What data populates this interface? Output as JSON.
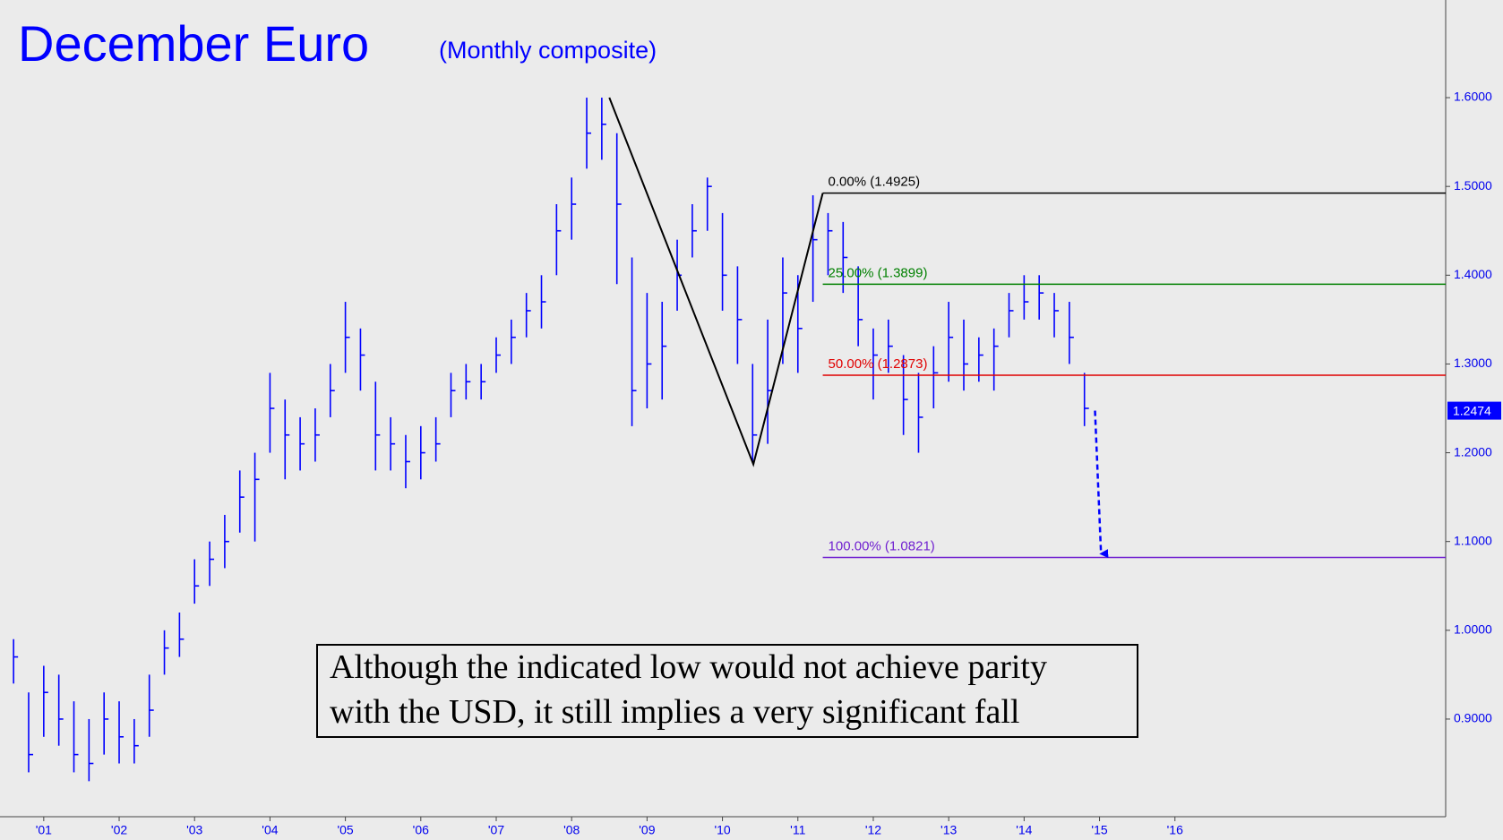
{
  "chart_data": {
    "type": "ohlc",
    "title": "December Euro",
    "subtitle": "(Monthly composite)",
    "color": "#0000ff",
    "x": [
      2000.6,
      2000.8,
      2001.0,
      2001.2,
      2001.4,
      2001.6,
      2001.8,
      2002.0,
      2002.2,
      2002.4,
      2002.6,
      2002.8,
      2003.0,
      2003.2,
      2003.4,
      2003.6,
      2003.8,
      2004.0,
      2004.2,
      2004.4,
      2004.6,
      2004.8,
      2005.0,
      2005.2,
      2005.4,
      2005.6,
      2005.8,
      2006.0,
      2006.2,
      2006.4,
      2006.6,
      2006.8,
      2007.0,
      2007.2,
      2007.4,
      2007.6,
      2007.8,
      2008.0,
      2008.2,
      2008.4,
      2008.6,
      2008.8,
      2009.0,
      2009.2,
      2009.4,
      2009.6,
      2009.8,
      2010.0,
      2010.2,
      2010.4,
      2010.6,
      2010.8,
      2011.0,
      2011.2,
      2011.4,
      2011.6,
      2011.8,
      2012.0,
      2012.2,
      2012.4,
      2012.6,
      2012.8,
      2013.0,
      2013.2,
      2013.4,
      2013.6,
      2013.8,
      2014.0,
      2014.2,
      2014.4,
      2014.6,
      2014.8
    ],
    "high": [
      0.99,
      0.93,
      0.96,
      0.95,
      0.92,
      0.9,
      0.93,
      0.92,
      0.9,
      0.95,
      1.0,
      1.02,
      1.08,
      1.1,
      1.13,
      1.18,
      1.2,
      1.29,
      1.26,
      1.24,
      1.25,
      1.3,
      1.37,
      1.34,
      1.28,
      1.24,
      1.22,
      1.23,
      1.24,
      1.29,
      1.3,
      1.3,
      1.33,
      1.35,
      1.38,
      1.4,
      1.48,
      1.51,
      1.6,
      1.6,
      1.56,
      1.42,
      1.38,
      1.37,
      1.44,
      1.48,
      1.51,
      1.47,
      1.41,
      1.3,
      1.35,
      1.42,
      1.4,
      1.49,
      1.47,
      1.46,
      1.41,
      1.34,
      1.35,
      1.31,
      1.29,
      1.32,
      1.37,
      1.35,
      1.33,
      1.34,
      1.38,
      1.4,
      1.4,
      1.38,
      1.37,
      1.29
    ],
    "low": [
      0.94,
      0.84,
      0.88,
      0.87,
      0.84,
      0.83,
      0.86,
      0.85,
      0.85,
      0.88,
      0.95,
      0.97,
      1.03,
      1.05,
      1.07,
      1.11,
      1.1,
      1.2,
      1.17,
      1.18,
      1.19,
      1.24,
      1.29,
      1.27,
      1.18,
      1.18,
      1.16,
      1.17,
      1.19,
      1.24,
      1.26,
      1.26,
      1.29,
      1.3,
      1.33,
      1.34,
      1.4,
      1.44,
      1.52,
      1.53,
      1.39,
      1.23,
      1.25,
      1.26,
      1.36,
      1.42,
      1.45,
      1.36,
      1.3,
      1.19,
      1.21,
      1.3,
      1.29,
      1.37,
      1.4,
      1.38,
      1.32,
      1.26,
      1.29,
      1.22,
      1.2,
      1.25,
      1.28,
      1.27,
      1.28,
      1.27,
      1.33,
      1.35,
      1.35,
      1.33,
      1.3,
      1.23
    ],
    "close": [
      0.97,
      0.86,
      0.93,
      0.9,
      0.86,
      0.85,
      0.9,
      0.88,
      0.87,
      0.91,
      0.98,
      0.99,
      1.05,
      1.08,
      1.1,
      1.15,
      1.17,
      1.25,
      1.22,
      1.21,
      1.22,
      1.27,
      1.33,
      1.31,
      1.22,
      1.21,
      1.19,
      1.2,
      1.21,
      1.27,
      1.28,
      1.28,
      1.31,
      1.33,
      1.36,
      1.37,
      1.45,
      1.48,
      1.56,
      1.57,
      1.48,
      1.27,
      1.3,
      1.32,
      1.4,
      1.45,
      1.5,
      1.4,
      1.35,
      1.22,
      1.27,
      1.38,
      1.34,
      1.44,
      1.45,
      1.42,
      1.35,
      1.31,
      1.32,
      1.26,
      1.24,
      1.29,
      1.33,
      1.3,
      1.31,
      1.32,
      1.36,
      1.37,
      1.38,
      1.36,
      1.33,
      1.25
    ],
    "xlim": [
      2000.42,
      2019.59
    ],
    "ylim": [
      0.79,
      1.71
    ],
    "xticks": [
      {
        "value": 2001,
        "label": "'01"
      },
      {
        "value": 2002,
        "label": "'02"
      },
      {
        "value": 2003,
        "label": "'03"
      },
      {
        "value": 2004,
        "label": "'04"
      },
      {
        "value": 2005,
        "label": "'05"
      },
      {
        "value": 2006,
        "label": "'06"
      },
      {
        "value": 2007,
        "label": "'07"
      },
      {
        "value": 2008,
        "label": "'08"
      },
      {
        "value": 2009,
        "label": "'09"
      },
      {
        "value": 2010,
        "label": "'10"
      },
      {
        "value": 2011,
        "label": "'11"
      },
      {
        "value": 2012,
        "label": "'12"
      },
      {
        "value": 2013,
        "label": "'13"
      },
      {
        "value": 2014,
        "label": "'14"
      },
      {
        "value": 2015,
        "label": "'15"
      },
      {
        "value": 2016,
        "label": "'16"
      }
    ],
    "yticks": [
      {
        "value": 0.9,
        "label": "0.9000"
      },
      {
        "value": 1.0,
        "label": "1.0000"
      },
      {
        "value": 1.1,
        "label": "1.1000"
      },
      {
        "value": 1.2,
        "label": "1.2000"
      },
      {
        "value": 1.3,
        "label": "1.3000"
      },
      {
        "value": 1.4,
        "label": "1.4000"
      },
      {
        "value": 1.5,
        "label": "1.5000"
      },
      {
        "value": 1.6,
        "label": "1.6000"
      }
    ],
    "last_price": 1.2474,
    "pattern": {
      "x": [
        2008.5,
        2010.41,
        2011.33
      ],
      "y": [
        1.6,
        1.187,
        1.4925
      ]
    },
    "fib": {
      "start_x": 2011.33,
      "levels": [
        {
          "label": "0.00% (1.4925)",
          "value": 1.4925,
          "color": "#000000"
        },
        {
          "label": "25.00% (1.3899)",
          "value": 1.3899,
          "color": "#008000"
        },
        {
          "label": "50.00% (1.2873)",
          "value": 1.2873,
          "color": "#e00000"
        },
        {
          "label": "100.00% (1.0821)",
          "value": 1.0821,
          "color": "#7020d0"
        }
      ]
    },
    "projection": {
      "x": [
        2014.94,
        2015.02
      ],
      "y": [
        1.2474,
        1.0821
      ]
    },
    "annotation": [
      "Although the indicated low would not achieve parity",
      "with the USD, it still implies a very significant fall"
    ]
  }
}
